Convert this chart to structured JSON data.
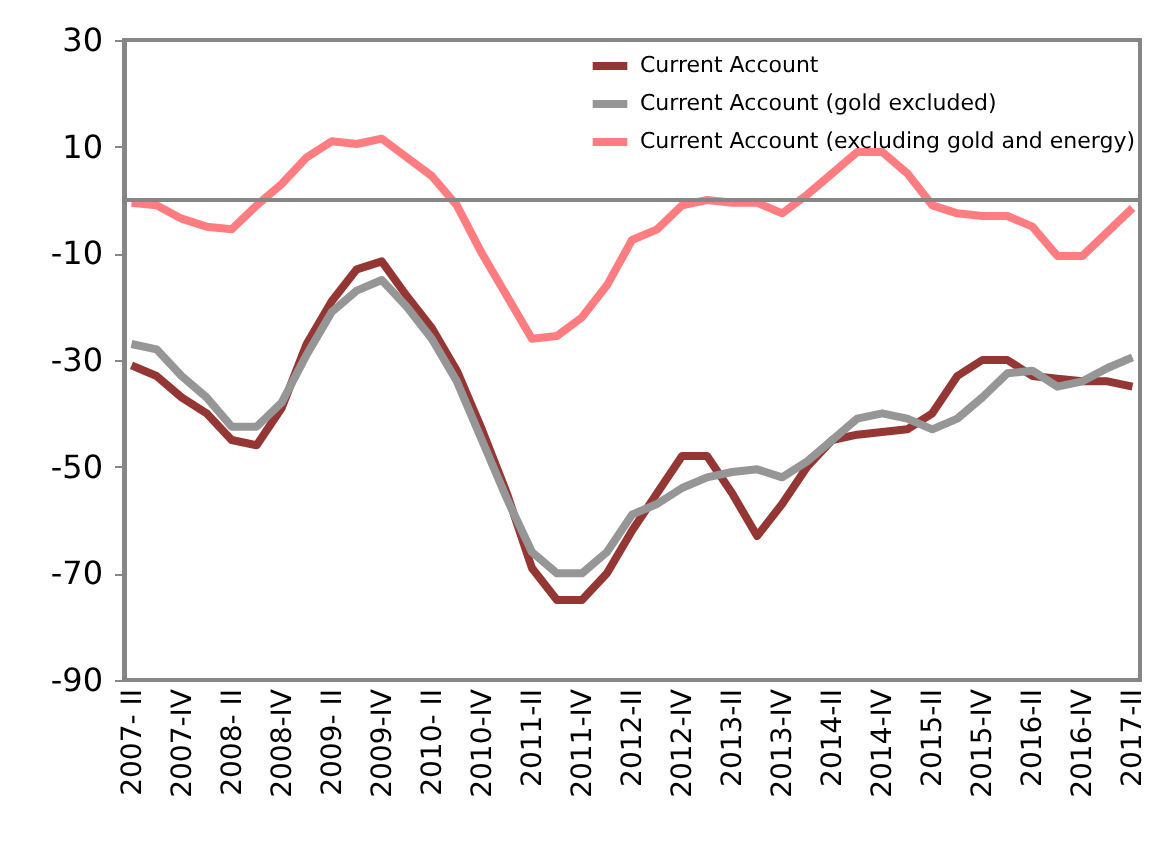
{
  "chart_data": {
    "type": "line",
    "categories": [
      "2007- II",
      null,
      "2007-IV",
      null,
      "2008- II",
      null,
      "2008-IV",
      null,
      "2009- II",
      null,
      "2009-IV",
      null,
      "2010- II",
      null,
      "2010-IV",
      null,
      "2011-II",
      null,
      "2011-IV",
      null,
      "2012-II",
      null,
      "2012-IV",
      null,
      "2013-II",
      null,
      "2013-IV",
      null,
      "2014-II",
      null,
      "2014-IV",
      null,
      "2015-II",
      null,
      "2015-IV",
      null,
      "2016-II",
      null,
      "2016-IV",
      null,
      "2017-II"
    ],
    "series": [
      {
        "name": "Current Account",
        "color": "#943634",
        "values": [
          -31,
          -33,
          -37,
          -40,
          -45,
          -46,
          -39,
          -27,
          -19,
          -13,
          -11.5,
          -18,
          -24,
          -32,
          -43,
          -55,
          -69,
          -75,
          -75,
          -70,
          -62,
          -55,
          -48,
          -48,
          -55,
          -63,
          -57,
          -50,
          -45,
          -44,
          -43.5,
          -43,
          -40,
          -33,
          -30,
          -30,
          -33,
          -33.5,
          -34,
          -34,
          -35
        ]
      },
      {
        "name": "Current Account (gold excluded)",
        "color": "#969696",
        "values": [
          -27,
          -28,
          -33,
          -37,
          -42.5,
          -42.5,
          -38,
          -29,
          -21,
          -17,
          -15,
          -20,
          -26,
          -34,
          -45,
          -56,
          -66,
          -70,
          -70,
          -66,
          -59,
          -57,
          -54,
          -52,
          -51,
          -50.5,
          -52,
          -49,
          -45,
          -41,
          -40,
          -41,
          -43,
          -41,
          -37,
          -32.5,
          -32,
          -35,
          -34,
          -31.5,
          -29.5
        ]
      },
      {
        "name": "Current Account (excluding gold and energy)",
        "color": "#ff7c80",
        "values": [
          -0.5,
          -1,
          -3.5,
          -5,
          -5.5,
          -1,
          3,
          8,
          11,
          10.5,
          11.5,
          8,
          4.5,
          -1,
          -10,
          -18,
          -26,
          -25.5,
          -22,
          -16,
          -7.5,
          -5.5,
          -1,
          0,
          -0.5,
          -0.5,
          -2.5,
          1,
          5,
          9,
          9,
          5,
          -1,
          -2.5,
          -3,
          -3,
          -5,
          -10.5,
          -10.5,
          -6,
          -1.5
        ]
      }
    ],
    "ylim": [
      -90,
      30
    ],
    "yticks": [
      -90,
      -70,
      -50,
      -30,
      -10,
      10,
      30
    ],
    "ref_lines": [
      {
        "axis": "y",
        "value": 0,
        "color": "#868686"
      }
    ],
    "grid": false,
    "legend": "top right",
    "line_style": "solid",
    "marker": "none"
  }
}
